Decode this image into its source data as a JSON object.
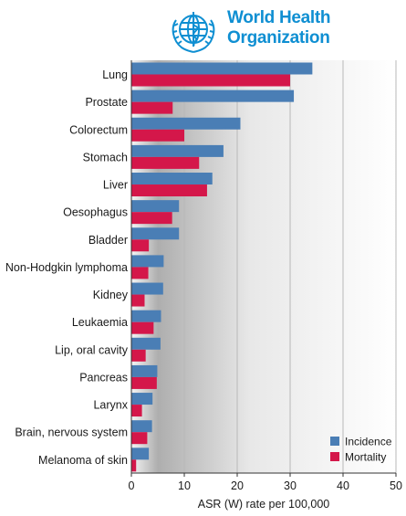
{
  "logo": {
    "line1": "World Health",
    "line2": "Organization"
  },
  "colors": {
    "incidence": "#4a7eb5",
    "mortality": "#d4174a",
    "logo": "#0f8fd2"
  },
  "chart_data": {
    "type": "bar",
    "orientation": "horizontal",
    "categories": [
      "Lung",
      "Prostate",
      "Colorectum",
      "Stomach",
      "Liver",
      "Oesophagus",
      "Bladder",
      "Non-Hodgkin lymphoma",
      "Kidney",
      "Leukaemia",
      "Lip, oral cavity",
      "Pancreas",
      "Larynx",
      "Brain, nervous system",
      "Melanoma of skin"
    ],
    "series": [
      {
        "name": "Incidence",
        "color": "#4a7eb5",
        "values": [
          34.2,
          30.7,
          20.6,
          17.4,
          15.3,
          9.0,
          9.0,
          6.1,
          6.0,
          5.6,
          5.5,
          4.9,
          4.0,
          3.9,
          3.3
        ]
      },
      {
        "name": "Mortality",
        "color": "#d4174a",
        "values": [
          30.0,
          7.8,
          10.0,
          12.8,
          14.3,
          7.7,
          3.3,
          3.2,
          2.5,
          4.2,
          2.7,
          4.8,
          2.0,
          3.0,
          0.9
        ]
      }
    ],
    "xlabel": "ASR (W) rate per 100,000",
    "xlim": [
      0,
      50
    ],
    "xticks": [
      0,
      10,
      20,
      30,
      40,
      50
    ],
    "grid": true,
    "legend_position": "bottom-right"
  }
}
